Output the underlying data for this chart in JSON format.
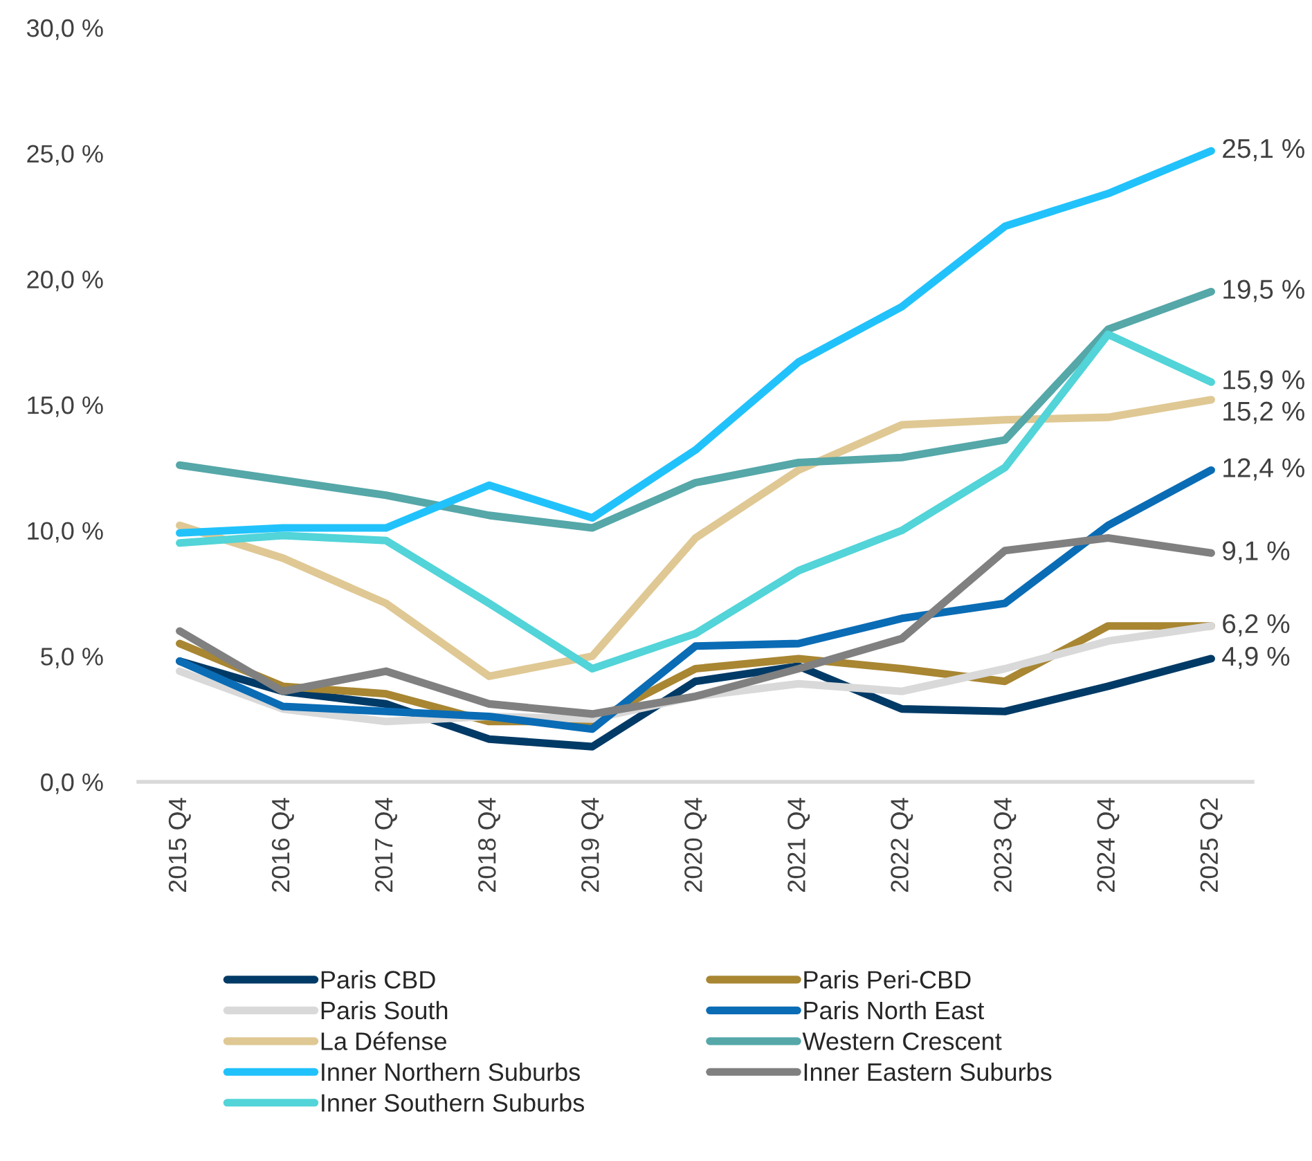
{
  "chart_data": {
    "type": "line",
    "categories": [
      "2015 Q4",
      "2016 Q4",
      "2017 Q4",
      "2018 Q4",
      "2019 Q4",
      "2020 Q4",
      "2021 Q4",
      "2022 Q4",
      "2023 Q4",
      "2024 Q4",
      "2025 Q2"
    ],
    "ylim": [
      0,
      30
    ],
    "yticks": [
      {
        "value": 0,
        "label": "0,0 %"
      },
      {
        "value": 5,
        "label": "5,0 %"
      },
      {
        "value": 10,
        "label": "10,0 %"
      },
      {
        "value": 15,
        "label": "15,0 %"
      },
      {
        "value": 20,
        "label": "20,0 %"
      },
      {
        "value": 25,
        "label": "25,0 %"
      },
      {
        "value": 30,
        "label": "30,0 %"
      }
    ],
    "grid": false,
    "legend": "bottom",
    "marker": "none",
    "line_style": "solid",
    "series": [
      {
        "name": "Paris CBD",
        "color": "#003a66",
        "values": [
          4.8,
          3.6,
          3.1,
          1.7,
          1.4,
          4.0,
          4.6,
          2.9,
          2.8,
          3.8,
          4.9
        ],
        "value_labels": [
          null,
          null,
          null,
          null,
          null,
          null,
          null,
          null,
          null,
          null,
          "4,9 %"
        ]
      },
      {
        "name": "Paris Peri-CBD",
        "color": "#a88632",
        "values": [
          5.5,
          3.8,
          3.5,
          2.4,
          2.4,
          4.5,
          4.9,
          4.5,
          4.0,
          6.2,
          6.2
        ],
        "value_labels": [
          null,
          null,
          null,
          null,
          null,
          null,
          null,
          null,
          null,
          null,
          "6,2 %"
        ]
      },
      {
        "name": "Paris South",
        "color": "#d9d9d9",
        "values": [
          4.4,
          2.9,
          2.4,
          2.6,
          2.5,
          3.4,
          3.9,
          3.6,
          4.5,
          5.6,
          6.2
        ],
        "value_labels": [
          null,
          null,
          null,
          null,
          null,
          null,
          null,
          null,
          null,
          null,
          null
        ]
      },
      {
        "name": "Paris North East",
        "color": "#0a6cb5",
        "values": [
          4.8,
          3.0,
          2.8,
          2.6,
          2.1,
          5.4,
          5.5,
          6.5,
          7.1,
          10.2,
          12.4
        ],
        "value_labels": [
          null,
          null,
          null,
          null,
          null,
          null,
          null,
          null,
          null,
          null,
          "12,4 %"
        ]
      },
      {
        "name": "La Défense",
        "color": "#dfc893",
        "values": [
          10.2,
          8.9,
          7.1,
          4.2,
          5.0,
          9.7,
          12.4,
          14.2,
          14.4,
          14.5,
          15.2
        ],
        "value_labels": [
          null,
          null,
          null,
          null,
          null,
          null,
          null,
          null,
          null,
          null,
          "15,2 %"
        ]
      },
      {
        "name": "Western Crescent",
        "color": "#55a7a8",
        "values": [
          12.6,
          12.0,
          11.4,
          10.6,
          10.1,
          11.9,
          12.7,
          12.9,
          13.6,
          18.0,
          19.5
        ],
        "value_labels": [
          null,
          null,
          null,
          null,
          null,
          null,
          null,
          null,
          null,
          null,
          "19,5 %"
        ]
      },
      {
        "name": "Inner Northern Suburbs",
        "color": "#21c2fb",
        "values": [
          9.9,
          10.1,
          10.1,
          11.8,
          10.5,
          13.2,
          16.7,
          18.9,
          22.1,
          23.4,
          25.1
        ],
        "value_labels": [
          null,
          null,
          null,
          null,
          null,
          null,
          null,
          null,
          null,
          null,
          "25,1 %"
        ]
      },
      {
        "name": "Inner Eastern Suburbs",
        "color": "#808080",
        "values": [
          6.0,
          3.6,
          4.4,
          3.1,
          2.7,
          3.4,
          4.5,
          5.7,
          9.2,
          9.7,
          9.1
        ],
        "value_labels": [
          null,
          null,
          null,
          null,
          null,
          null,
          null,
          null,
          null,
          null,
          "9,1 %"
        ]
      },
      {
        "name": "Inner Southern Suburbs",
        "color": "#52d4d8",
        "values": [
          9.5,
          9.8,
          9.6,
          7.1,
          4.5,
          5.9,
          8.4,
          10.0,
          12.5,
          17.8,
          15.9
        ],
        "value_labels": [
          null,
          null,
          null,
          null,
          null,
          null,
          null,
          null,
          null,
          null,
          "15,9 %"
        ]
      }
    ]
  }
}
